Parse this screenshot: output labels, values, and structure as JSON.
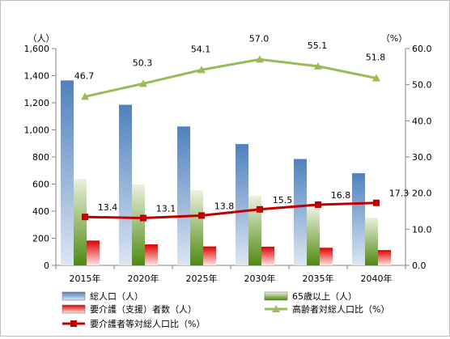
{
  "chart_data": {
    "type": "bar",
    "categories": [
      "2015年",
      "2020年",
      "2025年",
      "2030年",
      "2035年",
      "2040年"
    ],
    "left_axis": {
      "unit_label": "（人）",
      "ylim": [
        0,
        1600
      ],
      "ticks": [
        "0",
        "200",
        "400",
        "600",
        "800",
        "1,000",
        "1,200",
        "1,400",
        "1,600"
      ],
      "tick_values": [
        0,
        200,
        400,
        600,
        800,
        1000,
        1200,
        1400,
        1600
      ]
    },
    "right_axis": {
      "unit_label": "（%）",
      "ylim": [
        0,
        60
      ],
      "ticks": [
        "0.0",
        "10.0",
        "20.0",
        "30.0",
        "40.0",
        "50.0",
        "60.0"
      ],
      "tick_values": [
        0,
        10,
        20,
        30,
        40,
        50,
        60
      ]
    },
    "bar_series": [
      {
        "name": "総人口（人）",
        "axis": "left",
        "values": [
          1365,
          1185,
          1025,
          895,
          785,
          680
        ],
        "color_top": "#4f81bd",
        "color_bottom": "#dce6f2"
      },
      {
        "name": "65歳以上（人）",
        "axis": "left",
        "values": [
          638,
          597,
          555,
          512,
          428,
          352
        ],
        "color_top": "#ebf1de",
        "color_bottom": "#4f8a10"
      },
      {
        "name": "要介護（支援）者数（人）",
        "axis": "left",
        "values": [
          183,
          155,
          140,
          138,
          130,
          113
        ],
        "color_top": "#e00000",
        "color_bottom": "#ffe5e5"
      }
    ],
    "line_series": [
      {
        "name": "高齢者対総人口比（%）",
        "axis": "right",
        "values": [
          46.7,
          50.3,
          54.1,
          57.0,
          55.1,
          51.8
        ],
        "labels": [
          "46.7",
          "50.3",
          "54.1",
          "57.0",
          "55.1",
          "51.8"
        ],
        "color": "#9bbb59",
        "marker": "triangle"
      },
      {
        "name": "要介護者等対総人口比（%）",
        "axis": "right",
        "values": [
          13.4,
          13.1,
          13.8,
          15.5,
          16.8,
          17.3
        ],
        "labels": [
          "13.4",
          "13.1",
          "13.8",
          "15.5",
          "16.8",
          "17.3"
        ],
        "color": "#c00000",
        "marker": "square"
      }
    ],
    "grid": false,
    "legend_position": "bottom"
  }
}
